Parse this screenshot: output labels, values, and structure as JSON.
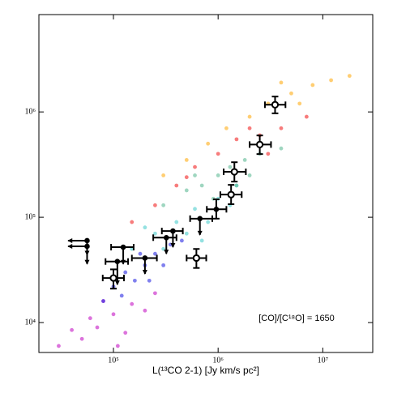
{
  "chart_data": {
    "type": "scatter",
    "xlabel": "L(¹³CO 2-1) [Jy km/s pc²]",
    "annotation": "[CO]/[C¹⁸O] = 1650",
    "log_x": true,
    "log_y": true,
    "xlim": [
      19400,
      30000000
    ],
    "ylim": [
      5200,
      8400000
    ],
    "xticks": [
      {
        "value": 100000,
        "label": "10⁵"
      },
      {
        "value": 1000000,
        "label": "10⁶"
      },
      {
        "value": 10000000,
        "label": "10⁷"
      }
    ],
    "yticks": [
      {
        "value": 10000,
        "label": "10⁴"
      },
      {
        "value": 100000,
        "label": "10⁵"
      },
      {
        "value": 1000000,
        "label": "10⁶"
      }
    ],
    "series": [
      {
        "color": "#c000c0",
        "x": [
          30000,
          50000,
          70000,
          100000,
          130000,
          150000,
          200000,
          80000,
          110000,
          60000,
          250000,
          40000
        ],
        "values": [
          6000,
          7000,
          9000,
          12000,
          8000,
          15000,
          13000,
          16000,
          6000,
          11000,
          19000,
          8500
        ]
      },
      {
        "color": "#1818e0",
        "x": [
          80000,
          100000,
          130000,
          160000,
          200000,
          250000,
          300000,
          350000,
          450000,
          120000,
          220000,
          180000
        ],
        "values": [
          16000,
          22000,
          30000,
          25000,
          35000,
          45000,
          35000,
          55000,
          60000,
          18000,
          25000,
          45000
        ]
      },
      {
        "color": "#3cc8c8",
        "x": [
          150000,
          250000,
          300000,
          400000,
          500000,
          600000,
          800000,
          1000000,
          1300000,
          700000,
          200000,
          1500000
        ],
        "values": [
          50000,
          70000,
          50000,
          90000,
          70000,
          120000,
          90000,
          150000,
          130000,
          60000,
          80000,
          200000
        ]
      },
      {
        "color": "#50b48c",
        "x": [
          300000,
          500000,
          700000,
          1000000,
          1300000,
          1800000,
          2500000,
          1500000,
          900000,
          4000000,
          600000,
          2000000
        ],
        "values": [
          130000,
          180000,
          200000,
          250000,
          300000,
          350000,
          400000,
          200000,
          150000,
          450000,
          250000,
          250000
        ]
      },
      {
        "color": "#f01010",
        "x": [
          150000,
          250000,
          400000,
          600000,
          1000000,
          1500000,
          2500000,
          4000000,
          7000000,
          3000000,
          2000000,
          500000
        ],
        "values": [
          90000,
          130000,
          200000,
          300000,
          400000,
          550000,
          600000,
          700000,
          900000,
          400000,
          700000,
          240000
        ]
      },
      {
        "color": "#ffa500",
        "x": [
          300000,
          500000,
          800000,
          1200000,
          2000000,
          3000000,
          5000000,
          8000000,
          12000000,
          18000000,
          4000000,
          6000000
        ],
        "values": [
          250000,
          350000,
          500000,
          700000,
          900000,
          1200000,
          1500000,
          1800000,
          2000000,
          2200000,
          1900000,
          1200000
        ]
      }
    ],
    "measurements": [
      {
        "x": 3500000,
        "y": 1170000,
        "xlo": 2800000,
        "xhi": 4400000,
        "ylo": 970000,
        "yhi": 1400000,
        "open": true
      },
      {
        "x": 2500000,
        "y": 490000,
        "xlo": 2000000,
        "xhi": 3200000,
        "ylo": 398000,
        "yhi": 598000,
        "open": true
      },
      {
        "x": 1430000,
        "y": 270000,
        "xlo": 1130000,
        "xhi": 1840000,
        "ylo": 218000,
        "yhi": 333000,
        "open": true
      },
      {
        "x": 1330000,
        "y": 164000,
        "xlo": 1050000,
        "xhi": 1680000,
        "ylo": 133000,
        "yhi": 203000,
        "open": true
      },
      {
        "x": 960000,
        "y": 119000,
        "xlo": 780000,
        "xhi": 1200000,
        "ylo": 97000,
        "yhi": 148000,
        "open": false
      },
      {
        "x": 670000,
        "y": 97000,
        "xlo": 540000,
        "xhi": 880000,
        "ylo": 68000,
        "open": false,
        "upper": true
      },
      {
        "x": 370000,
        "y": 74000,
        "xlo": 290000,
        "xhi": 460000,
        "ylo": 52000,
        "open": false,
        "upper": true
      },
      {
        "x": 320000,
        "y": 64000,
        "xlo": 240000,
        "xhi": 400000,
        "ylo": 45000,
        "open": false,
        "upper": true
      },
      {
        "x": 620000,
        "y": 41000,
        "xlo": 500000,
        "xhi": 770000,
        "ylo": 33000,
        "yhi": 50000,
        "open": true
      },
      {
        "x": 200000,
        "y": 41000,
        "xlo": 150000,
        "xhi": 260000,
        "ylo": 29000,
        "open": false,
        "upper": true
      },
      {
        "x": 124000,
        "y": 52000,
        "xlo": 95000,
        "xhi": 156000,
        "ylo": 36000,
        "open": false,
        "upper": true
      },
      {
        "x": 109000,
        "y": 38000,
        "xlo": 84000,
        "xhi": 138000,
        "ylo": 23000,
        "open": false,
        "upper": true
      },
      {
        "x": 100000,
        "y": 26500,
        "xlo": 79000,
        "xhi": 126000,
        "ylo": 21000,
        "yhi": 32000,
        "open": true
      },
      {
        "x": 56000,
        "y": 60000,
        "xlo": 37000,
        "ylo": 44000,
        "open": false,
        "upper": true,
        "left": true
      },
      {
        "x": 56000,
        "y": 53000,
        "xlo": 37000,
        "ylo": 36000,
        "open": false,
        "upper": true,
        "left": true
      }
    ]
  }
}
